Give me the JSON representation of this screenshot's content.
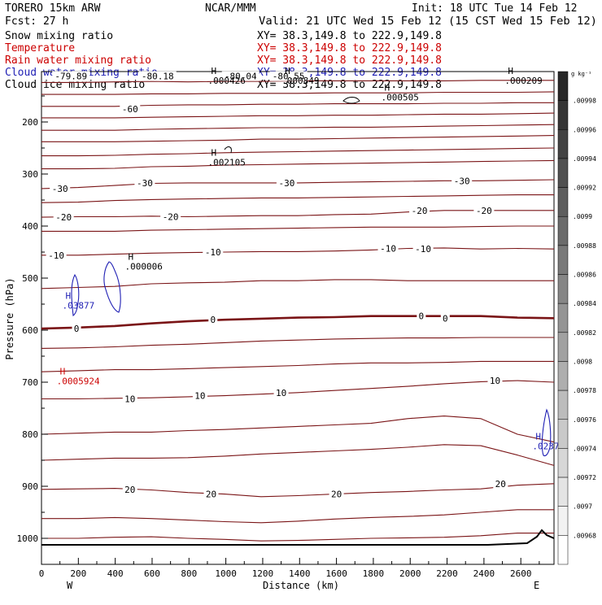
{
  "header": {
    "model": "TORERO   15km ARW",
    "center": "NCAR/MMM",
    "init": "Init: 18 UTC Tue 14 Feb 12",
    "fcst": "Fcst:    27 h",
    "valid": "Valid: 21 UTC Wed 15 Feb 12 (15 CST Wed 15 Feb 12)"
  },
  "colors": {
    "black": "#000000",
    "temperature": "#7a1416",
    "temp_light": "#a04a4c",
    "rain": "#cc0000",
    "cloud_water": "#1f1fb4",
    "ground": "#000000"
  },
  "chart_data": {
    "type": "contour_cross_section",
    "fields": [
      {
        "name": "Snow mixing ratio",
        "xy": "XY=  38.3,149.8 to 222.9,149.8",
        "color": "#000000"
      },
      {
        "name": "Temperature",
        "xy": "XY=  38.3,149.8 to 222.9,149.8",
        "color": "#cc0000"
      },
      {
        "name": "Rain water mixing ratio",
        "xy": "XY=  38.3,149.8 to 222.9,149.8",
        "color": "#cc0000"
      },
      {
        "name": "Cloud water mixing ratio",
        "xy": "XY=  38.3,149.8 to 222.9,149.8",
        "color": "#1f1fb4"
      },
      {
        "name": "Cloud ice mixing ratio",
        "xy": "XY=  38.3,149.8 to 222.9,149.8",
        "color": "#000000"
      }
    ],
    "xlabel": "Distance (km)",
    "ylabel": "Pressure (hPa)",
    "xlim": [
      0,
      2780
    ],
    "x_ticks": [
      0,
      200,
      400,
      600,
      800,
      1000,
      1200,
      1400,
      1600,
      1800,
      2000,
      2200,
      2400,
      2600
    ],
    "y_range_hPa": [
      98,
      1050
    ],
    "y_ticks": [
      200,
      300,
      400,
      500,
      600,
      700,
      800,
      900,
      1000
    ],
    "west_label": "W",
    "east_label": "E",
    "colorbar": {
      "unit": "g kg⁻¹",
      "labels": [
        ".00998",
        ".00996",
        ".00994",
        ".00992",
        ".0099",
        ".00988",
        ".00986",
        ".00984",
        ".00982",
        ".0098",
        ".00978",
        ".00976",
        ".00974",
        ".00972",
        ".0097",
        ".00968"
      ]
    },
    "isotherm_labels": [
      {
        "text": "-79.89",
        "x": 160,
        "p": 112
      },
      {
        "text": "-80.18",
        "x": 630,
        "p": 112
      },
      {
        "text": "-80.04",
        "x": 1080,
        "p": 112
      },
      {
        "text": "-80.55",
        "x": 1340,
        "p": 112
      },
      {
        "text": "-60",
        "x": 480,
        "p": 175
      },
      {
        "text": "-30",
        "x": 100,
        "p": 328
      },
      {
        "text": "-30",
        "x": 560,
        "p": 317
      },
      {
        "text": "-30",
        "x": 1330,
        "p": 317
      },
      {
        "text": "-30",
        "x": 2280,
        "p": 313
      },
      {
        "text": "-20",
        "x": 120,
        "p": 383
      },
      {
        "text": "-20",
        "x": 700,
        "p": 382
      },
      {
        "text": "-20",
        "x": 2050,
        "p": 370
      },
      {
        "text": "-20",
        "x": 2400,
        "p": 370
      },
      {
        "text": "-10",
        "x": 80,
        "p": 456
      },
      {
        "text": "-10",
        "x": 930,
        "p": 450
      },
      {
        "text": "-10",
        "x": 1880,
        "p": 443
      },
      {
        "text": "-10",
        "x": 2070,
        "p": 444
      },
      {
        "text": "0",
        "x": 190,
        "p": 597
      },
      {
        "text": "0",
        "x": 930,
        "p": 580
      },
      {
        "text": "0",
        "x": 2060,
        "p": 573
      },
      {
        "text": "0",
        "x": 2190,
        "p": 577
      },
      {
        "text": "10",
        "x": 480,
        "p": 732
      },
      {
        "text": "10",
        "x": 860,
        "p": 726
      },
      {
        "text": "10",
        "x": 1300,
        "p": 720
      },
      {
        "text": "10",
        "x": 2460,
        "p": 697
      },
      {
        "text": "20",
        "x": 480,
        "p": 906
      },
      {
        "text": "20",
        "x": 920,
        "p": 915
      },
      {
        "text": "20",
        "x": 1600,
        "p": 915
      },
      {
        "text": "20",
        "x": 2490,
        "p": 895
      }
    ],
    "maxima": [
      {
        "text": "H",
        "value": ".000426",
        "x": 920,
        "p": 108,
        "color": "#000000"
      },
      {
        "text": "H",
        "value": ".000849",
        "x": 1320,
        "p": 108,
        "color": "#000000"
      },
      {
        "text": "H",
        "value": ".000209",
        "x": 2530,
        "p": 108,
        "color": "#000000"
      },
      {
        "text": "H",
        "value": ".000505",
        "x": 1860,
        "p": 140,
        "color": "#000000"
      },
      {
        "text": "H",
        "value": ".002105",
        "x": 920,
        "p": 265,
        "color": "#000000"
      },
      {
        "text": "H",
        "value": ".000006",
        "x": 470,
        "p": 465,
        "color": "#000000"
      },
      {
        "text": "H",
        "value": ".03877",
        "x": 130,
        "p": 540,
        "color": "#1f1fb4"
      },
      {
        "text": "H",
        "value": ".0005924",
        "x": 100,
        "p": 685,
        "color": "#cc0000"
      },
      {
        "text": "H",
        "value": ".0237",
        "x": 2680,
        "p": 810,
        "color": "#1f1fb4"
      }
    ],
    "isotherm_levels": [
      [
        124,
        124,
        123,
        122,
        123,
        122,
        122,
        121,
        121,
        121,
        121,
        121,
        120,
        120,
        120
      ],
      [
        147,
        147,
        147,
        146,
        146,
        145,
        145,
        145,
        144,
        144,
        144,
        143,
        143,
        143,
        142
      ],
      [
        170,
        170,
        170,
        168,
        167,
        167,
        166,
        166,
        165,
        165,
        165,
        164,
        164,
        163,
        163
      ],
      [
        192,
        192,
        192,
        191,
        190,
        189,
        188,
        188,
        187,
        187,
        186,
        185,
        185,
        184,
        183
      ],
      [
        216,
        216,
        216,
        214,
        213,
        212,
        211,
        211,
        210,
        210,
        209,
        208,
        207,
        206,
        205
      ],
      [
        238,
        238,
        238,
        237,
        236,
        235,
        233,
        233,
        232,
        231,
        230,
        229,
        228,
        227,
        226
      ],
      [
        265,
        265,
        264,
        262,
        261,
        259,
        258,
        257,
        256,
        255,
        254,
        253,
        252,
        251,
        250
      ],
      [
        290,
        290,
        289,
        286,
        285,
        283,
        282,
        281,
        280,
        279,
        278,
        277,
        276,
        275,
        274
      ],
      [
        328,
        326,
        322,
        318,
        317,
        317,
        317,
        317,
        316,
        315,
        314,
        313,
        313,
        312,
        311
      ],
      [
        355,
        354,
        351,
        349,
        348,
        347,
        346,
        346,
        345,
        344,
        343,
        342,
        341,
        340,
        340
      ],
      [
        383,
        382,
        382,
        381,
        382,
        381,
        380,
        380,
        378,
        377,
        373,
        370,
        370,
        370,
        370
      ],
      [
        410,
        410,
        410,
        408,
        407,
        406,
        405,
        404,
        403,
        402,
        402,
        402,
        401,
        400,
        400
      ],
      [
        456,
        456,
        454,
        452,
        451,
        450,
        449,
        449,
        448,
        446,
        443,
        442,
        444,
        443,
        444
      ],
      [
        520,
        518,
        516,
        511,
        509,
        508,
        505,
        505,
        503,
        503,
        505,
        505,
        505,
        505,
        505
      ],
      [
        597,
        595,
        592,
        587,
        583,
        580,
        578,
        576,
        575,
        573,
        573,
        573,
        573,
        576,
        577
      ],
      [
        635,
        634,
        632,
        629,
        627,
        624,
        621,
        619,
        617,
        616,
        615,
        615,
        614,
        614,
        614
      ],
      [
        680,
        678,
        676,
        676,
        674,
        672,
        670,
        668,
        665,
        663,
        663,
        662,
        660,
        660,
        660
      ],
      [
        732,
        732,
        731,
        730,
        728,
        726,
        723,
        720,
        716,
        712,
        708,
        703,
        699,
        697,
        700
      ],
      [
        800,
        798,
        796,
        796,
        793,
        791,
        788,
        785,
        782,
        779,
        770,
        765,
        770,
        800,
        815
      ],
      [
        850,
        848,
        846,
        846,
        845,
        842,
        838,
        835,
        832,
        829,
        825,
        820,
        822,
        840,
        860
      ],
      [
        906,
        905,
        904,
        907,
        912,
        915,
        920,
        918,
        915,
        912,
        910,
        907,
        905,
        898,
        895
      ],
      [
        962,
        962,
        960,
        962,
        965,
        968,
        970,
        967,
        963,
        960,
        958,
        955,
        950,
        945,
        945
      ],
      [
        1000,
        1000,
        998,
        997,
        1000,
        1002,
        1005,
        1004,
        1002,
        1000,
        999,
        998,
        995,
        990,
        990
      ]
    ]
  }
}
